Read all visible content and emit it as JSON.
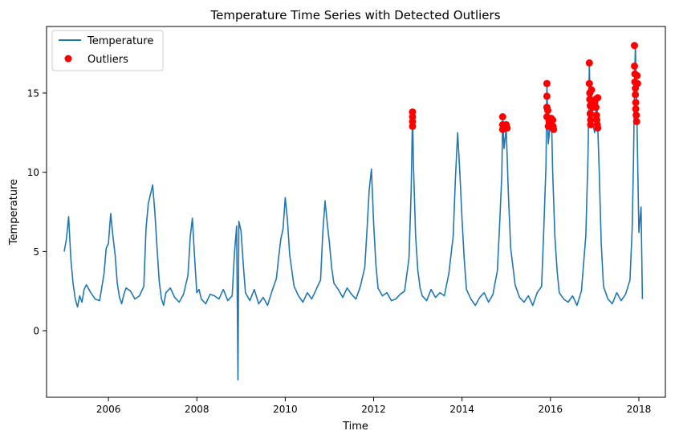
{
  "chart_data": {
    "type": "line",
    "title": "Temperature Time Series with Detected Outliers",
    "xlabel": "Time",
    "ylabel": "Temperature",
    "xlim": [
      2004.6,
      2018.6
    ],
    "ylim": [
      -4.2,
      19.2
    ],
    "x_ticks": [
      2006,
      2008,
      2010,
      2012,
      2014,
      2016,
      2018
    ],
    "y_ticks": [
      0,
      5,
      10,
      15
    ],
    "grid": false,
    "legend_position": "top-left",
    "colors": {
      "line": "#1f77b4",
      "outlier": "#ff0000"
    },
    "series": [
      {
        "name": "Temperature",
        "kind": "line",
        "x": [
          2005.0,
          2005.05,
          2005.1,
          2005.15,
          2005.2,
          2005.25,
          2005.3,
          2005.35,
          2005.4,
          2005.45,
          2005.5,
          2005.6,
          2005.7,
          2005.8,
          2005.9,
          2005.95,
          2006.0,
          2006.05,
          2006.1,
          2006.15,
          2006.2,
          2006.25,
          2006.3,
          2006.35,
          2006.4,
          2006.5,
          2006.6,
          2006.7,
          2006.8,
          2006.85,
          2006.9,
          2006.95,
          2007.0,
          2007.05,
          2007.1,
          2007.15,
          2007.2,
          2007.25,
          2007.3,
          2007.4,
          2007.5,
          2007.6,
          2007.7,
          2007.8,
          2007.85,
          2007.9,
          2007.95,
          2008.0,
          2008.05,
          2008.1,
          2008.2,
          2008.3,
          2008.4,
          2008.5,
          2008.6,
          2008.7,
          2008.8,
          2008.85,
          2008.9,
          2008.93,
          2008.95,
          2009.0,
          2009.05,
          2009.1,
          2009.2,
          2009.3,
          2009.4,
          2009.5,
          2009.6,
          2009.7,
          2009.8,
          2009.85,
          2009.9,
          2009.95,
          2010.0,
          2010.05,
          2010.1,
          2010.2,
          2010.3,
          2010.4,
          2010.5,
          2010.6,
          2010.7,
          2010.8,
          2010.85,
          2010.9,
          2010.95,
          2011.0,
          2011.05,
          2011.1,
          2011.2,
          2011.3,
          2011.4,
          2011.5,
          2011.6,
          2011.7,
          2011.8,
          2011.85,
          2011.9,
          2011.95,
          2012.0,
          2012.05,
          2012.1,
          2012.2,
          2012.3,
          2012.4,
          2012.5,
          2012.6,
          2012.7,
          2012.8,
          2012.85,
          2012.88,
          2012.9,
          2012.95,
          2013.0,
          2013.05,
          2013.1,
          2013.2,
          2013.3,
          2013.4,
          2013.5,
          2013.6,
          2013.7,
          2013.8,
          2013.85,
          2013.9,
          2013.95,
          2014.0,
          2014.05,
          2014.1,
          2014.2,
          2014.3,
          2014.4,
          2014.5,
          2014.6,
          2014.7,
          2014.8,
          2014.85,
          2014.9,
          2014.92,
          2014.95,
          2015.0,
          2015.05,
          2015.1,
          2015.2,
          2015.3,
          2015.4,
          2015.5,
          2015.6,
          2015.7,
          2015.8,
          2015.85,
          2015.9,
          2015.92,
          2015.95,
          2016.0,
          2016.03,
          2016.05,
          2016.1,
          2016.15,
          2016.2,
          2016.3,
          2016.4,
          2016.5,
          2016.6,
          2016.7,
          2016.8,
          2016.85,
          2016.88,
          2016.9,
          2016.93,
          2016.95,
          2017.0,
          2017.05,
          2017.1,
          2017.15,
          2017.2,
          2017.3,
          2017.4,
          2017.5,
          2017.6,
          2017.7,
          2017.8,
          2017.85,
          2017.88,
          2017.9,
          2017.92,
          2017.95,
          2018.0,
          2018.05,
          2018.08
        ],
        "y": [
          5.0,
          5.8,
          7.2,
          4.5,
          3.0,
          2.0,
          1.5,
          2.2,
          1.8,
          2.6,
          2.9,
          2.4,
          2.0,
          1.9,
          3.6,
          5.2,
          5.5,
          7.4,
          6.0,
          4.8,
          3.0,
          2.1,
          1.7,
          2.3,
          2.7,
          2.5,
          2.0,
          2.2,
          2.8,
          6.4,
          8.0,
          8.6,
          9.2,
          7.5,
          5.2,
          3.1,
          2.0,
          1.6,
          2.4,
          2.7,
          2.1,
          1.8,
          2.3,
          3.5,
          5.9,
          7.1,
          4.6,
          2.4,
          2.6,
          2.0,
          1.7,
          2.3,
          2.2,
          2.0,
          2.6,
          1.9,
          2.2,
          4.9,
          6.6,
          -3.1,
          6.9,
          6.3,
          4.2,
          2.4,
          1.9,
          2.6,
          1.7,
          2.1,
          1.6,
          2.5,
          3.3,
          4.6,
          5.8,
          6.4,
          8.4,
          7.0,
          4.8,
          2.8,
          2.2,
          1.8,
          2.4,
          2.0,
          2.6,
          3.2,
          6.2,
          8.2,
          6.8,
          5.5,
          4.0,
          3.0,
          2.6,
          2.1,
          2.7,
          2.3,
          2.0,
          2.8,
          4.0,
          6.4,
          8.9,
          10.2,
          6.8,
          4.2,
          2.7,
          2.2,
          2.4,
          1.9,
          2.0,
          2.3,
          2.5,
          4.6,
          8.9,
          13.8,
          10.5,
          6.0,
          3.8,
          2.7,
          2.2,
          1.9,
          2.6,
          2.1,
          2.4,
          2.2,
          3.6,
          6.0,
          9.6,
          12.5,
          10.0,
          7.0,
          4.5,
          2.6,
          2.0,
          1.6,
          2.1,
          2.4,
          1.8,
          2.3,
          3.8,
          6.7,
          9.8,
          13.4,
          11.5,
          12.8,
          8.5,
          5.2,
          2.9,
          2.1,
          1.8,
          2.2,
          1.6,
          2.4,
          2.8,
          6.5,
          10.5,
          15.6,
          11.8,
          13.2,
          12.6,
          10.0,
          6.0,
          3.8,
          2.4,
          2.0,
          1.8,
          2.2,
          1.6,
          2.5,
          6.0,
          11.0,
          16.9,
          13.8,
          15.0,
          13.2,
          12.5,
          14.6,
          10.4,
          5.5,
          2.8,
          2.0,
          1.7,
          2.4,
          1.9,
          2.3,
          3.2,
          6.5,
          10.8,
          15.2,
          18.0,
          14.5,
          6.2,
          7.8,
          2.0
        ]
      },
      {
        "name": "Outliers",
        "kind": "scatter",
        "x": [
          2012.88,
          2012.88,
          2012.88,
          2012.88,
          2014.92,
          2014.92,
          2014.92,
          2015.0,
          2015.02,
          2015.92,
          2015.92,
          2015.92,
          2015.92,
          2015.94,
          2015.95,
          2015.97,
          2016.02,
          2016.05,
          2016.06,
          2016.07,
          2016.88,
          2016.88,
          2016.89,
          2016.89,
          2016.9,
          2016.9,
          2016.91,
          2016.91,
          2016.93,
          2016.95,
          2017.0,
          2017.02,
          2017.03,
          2017.04,
          2017.05,
          2017.06,
          2017.07,
          2017.07,
          2017.9,
          2017.9,
          2017.91,
          2017.91,
          2017.92,
          2017.92,
          2017.93,
          2017.93,
          2017.94,
          2017.95,
          2017.96,
          2017.97
        ],
        "y": [
          13.8,
          13.5,
          13.2,
          12.9,
          13.5,
          13.0,
          12.7,
          13.0,
          12.8,
          15.6,
          14.8,
          14.1,
          13.5,
          13.9,
          12.9,
          13.2,
          13.4,
          13.3,
          12.9,
          12.7,
          16.9,
          15.6,
          15.0,
          14.6,
          14.2,
          13.7,
          13.3,
          13.0,
          15.2,
          14.1,
          14.4,
          14.6,
          14.1,
          13.6,
          13.3,
          13.0,
          12.8,
          14.7,
          18.0,
          16.7,
          16.2,
          15.7,
          15.3,
          14.9,
          14.4,
          14.0,
          13.6,
          13.2,
          16.1,
          15.6
        ]
      }
    ]
  }
}
